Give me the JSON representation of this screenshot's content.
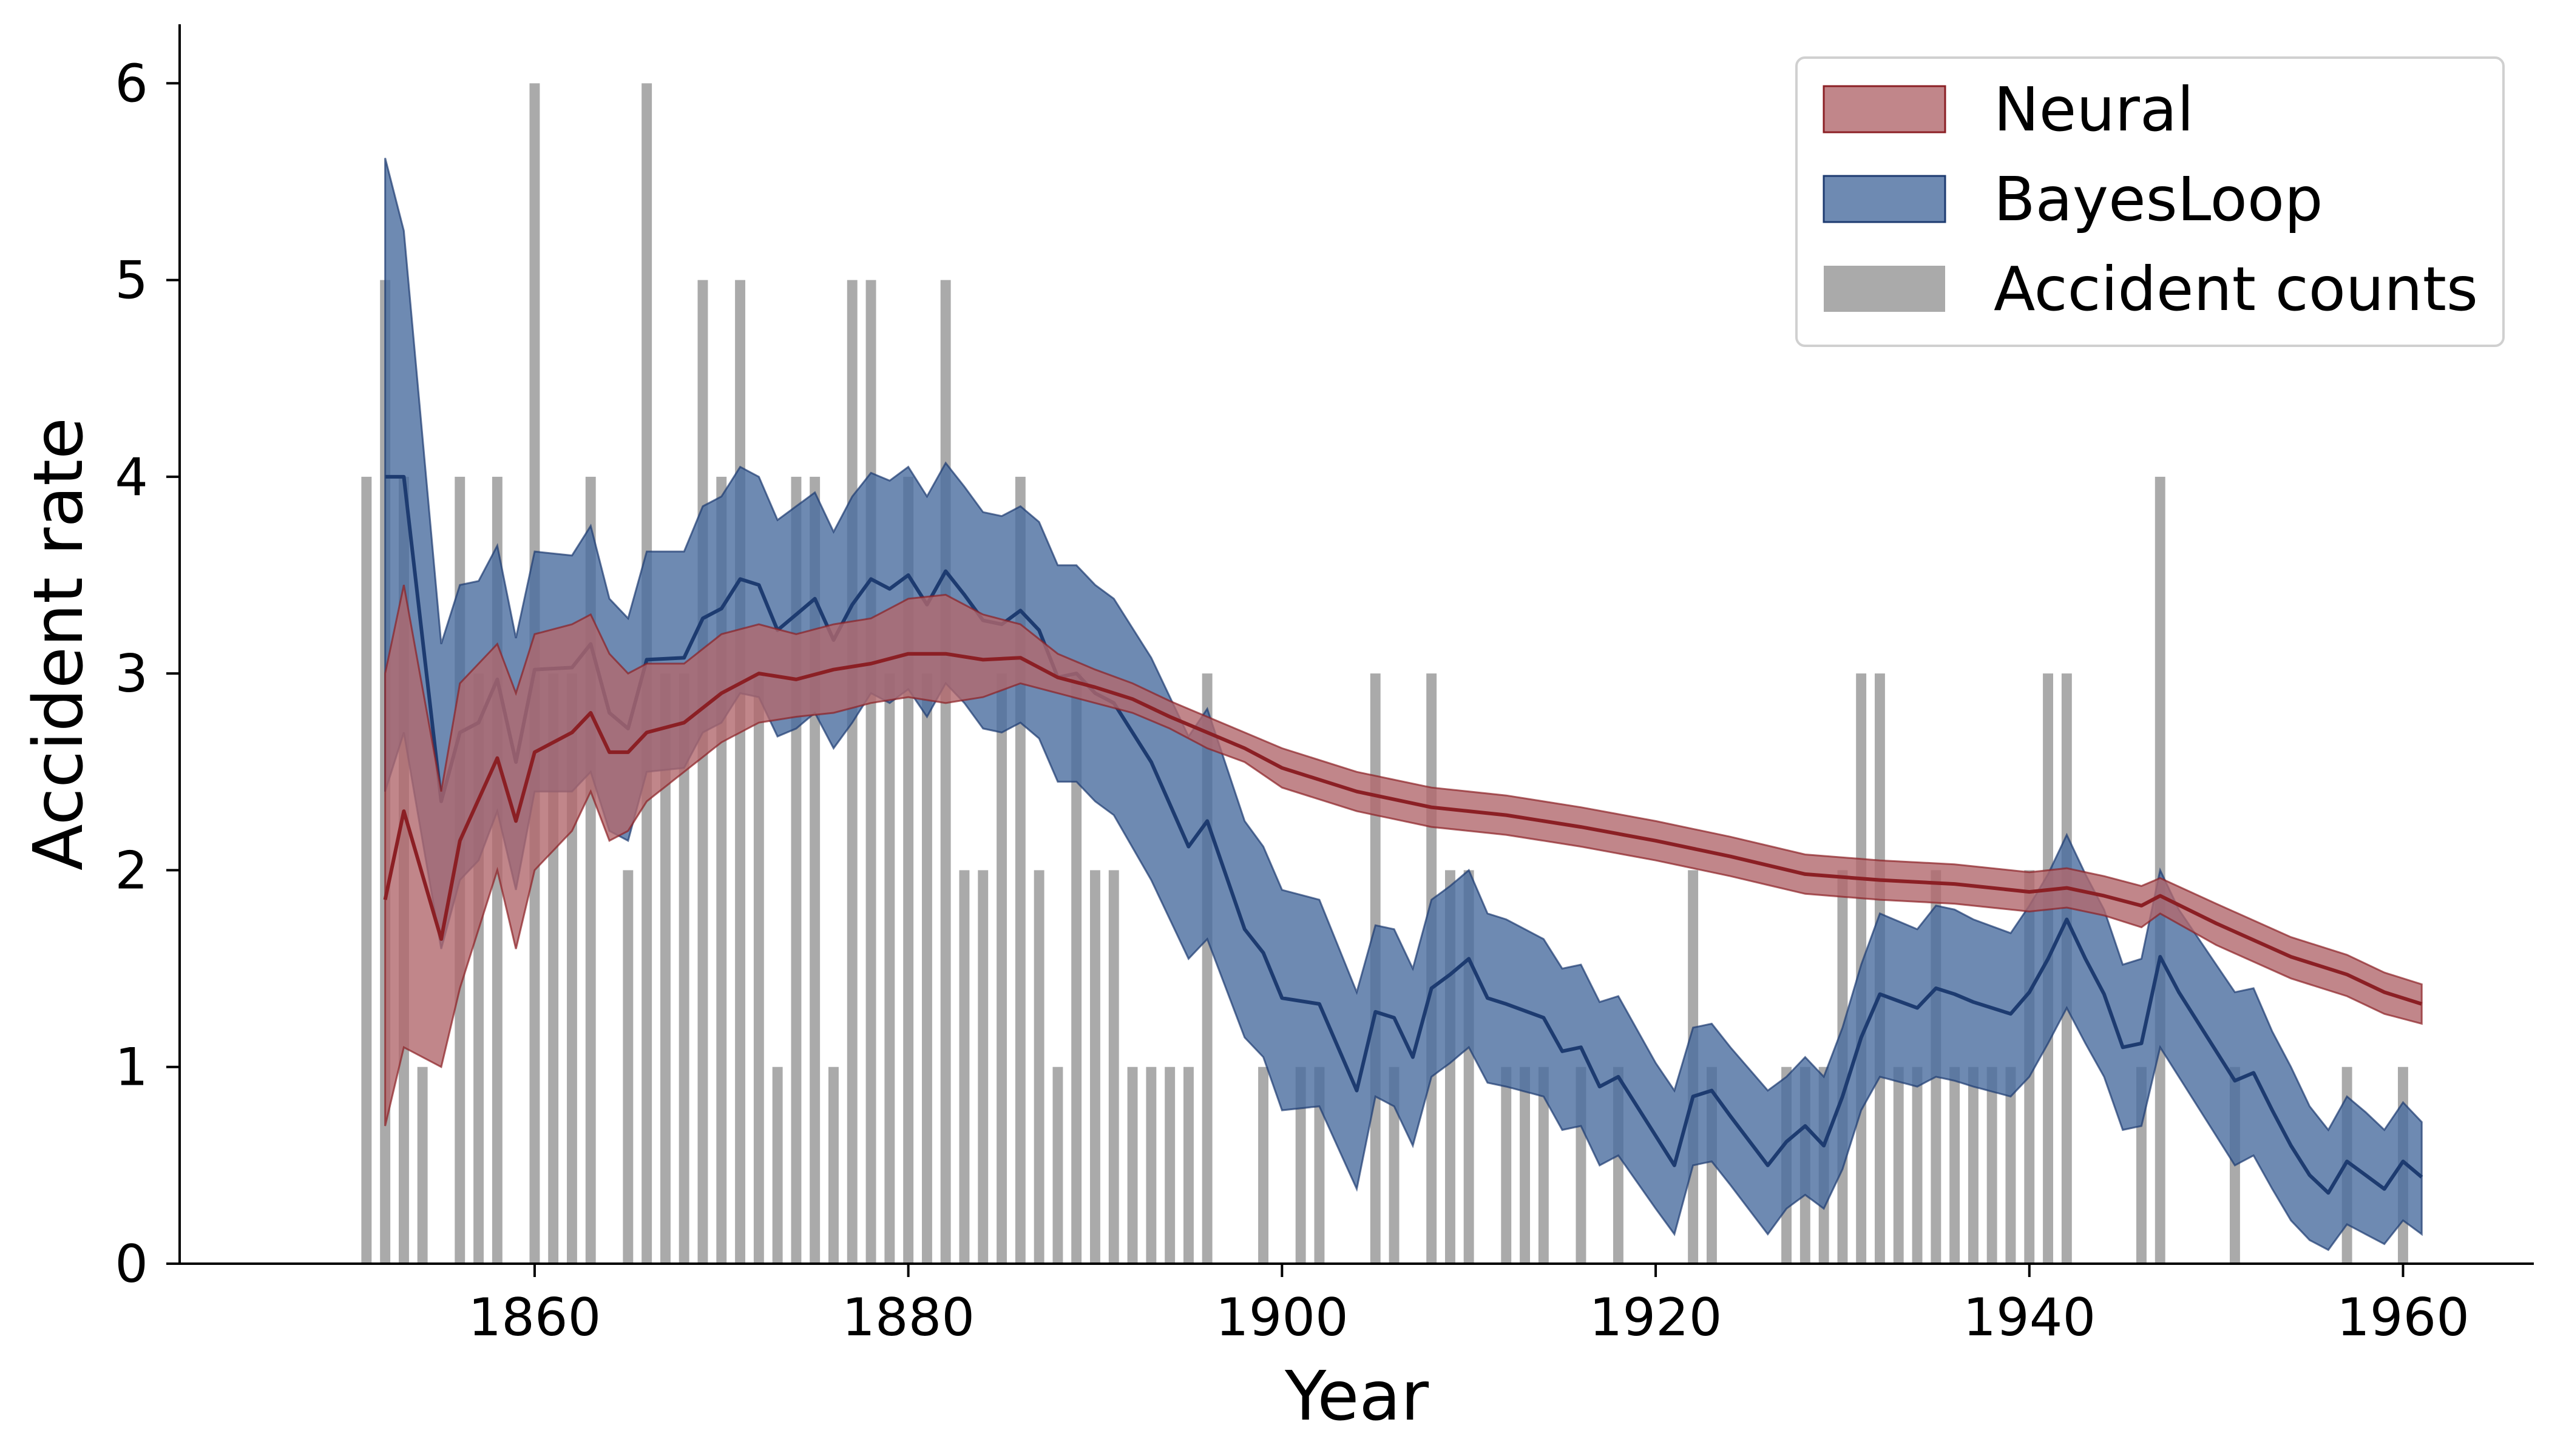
{
  "chart_data": {
    "type": "bar",
    "title": "",
    "xlabel": "Year",
    "ylabel": "Accident rate",
    "xlim": [
      1841,
      1967
    ],
    "ylim": [
      0,
      6.3
    ],
    "xticks": [
      1860,
      1880,
      1900,
      1920,
      1940,
      1960
    ],
    "yticks": [
      0,
      1,
      2,
      3,
      4,
      5,
      6
    ],
    "grid": false,
    "legend_position": "top-right",
    "colors": {
      "neural_fill": "#b2686d",
      "neural_line": "#8b1f24",
      "bayes_fill": "#4a6d9f",
      "bayes_line": "#1d3b70",
      "counts": "#aaaaaa"
    },
    "legend": [
      {
        "key": "neural",
        "label": "Neural"
      },
      {
        "key": "bayes",
        "label": "BayesLoop"
      },
      {
        "key": "counts",
        "label": "Accident counts"
      }
    ],
    "counts": {
      "name": "Accident counts",
      "x": [
        1851,
        1852,
        1853,
        1854,
        1855,
        1856,
        1857,
        1858,
        1859,
        1860,
        1861,
        1862,
        1863,
        1864,
        1865,
        1866,
        1867,
        1868,
        1869,
        1870,
        1871,
        1872,
        1873,
        1874,
        1875,
        1876,
        1877,
        1878,
        1879,
        1880,
        1881,
        1882,
        1883,
        1884,
        1885,
        1886,
        1887,
        1888,
        1889,
        1890,
        1891,
        1892,
        1893,
        1894,
        1895,
        1896,
        1897,
        1898,
        1899,
        1900,
        1901,
        1902,
        1903,
        1904,
        1905,
        1906,
        1907,
        1908,
        1909,
        1910,
        1911,
        1912,
        1913,
        1914,
        1915,
        1916,
        1917,
        1918,
        1919,
        1920,
        1921,
        1922,
        1923,
        1924,
        1925,
        1926,
        1927,
        1928,
        1929,
        1930,
        1931,
        1932,
        1933,
        1934,
        1935,
        1936,
        1937,
        1938,
        1939,
        1940,
        1941,
        1942,
        1943,
        1944,
        1945,
        1946,
        1947,
        1948,
        1949,
        1950,
        1951,
        1952,
        1953,
        1954,
        1955,
        1956,
        1957,
        1958,
        1959,
        1960,
        1961
      ],
      "values": [
        4,
        5,
        4,
        1,
        0,
        4,
        3,
        4,
        0,
        6,
        3,
        3,
        4,
        0,
        2,
        6,
        3,
        3,
        5,
        4,
        5,
        3,
        1,
        4,
        4,
        1,
        5,
        5,
        3,
        4,
        3,
        5,
        2,
        2,
        3,
        4,
        2,
        1,
        3,
        2,
        2,
        1,
        1,
        1,
        1,
        3,
        0,
        0,
        1,
        0,
        1,
        1,
        0,
        0,
        3,
        1,
        0,
        3,
        2,
        2,
        0,
        1,
        1,
        1,
        0,
        1,
        0,
        1,
        0,
        0,
        0,
        2,
        1,
        0,
        0,
        0,
        1,
        1,
        1,
        2,
        3,
        3,
        1,
        1,
        2,
        1,
        1,
        1,
        1,
        2,
        3,
        3,
        0,
        0,
        0,
        1,
        4,
        0,
        0,
        0,
        1,
        0,
        0,
        0,
        0,
        0,
        1,
        0,
        0,
        1,
        0
      ]
    },
    "neural": {
      "name": "Neural",
      "x": [
        1852,
        1853,
        1855,
        1856,
        1858,
        1859,
        1860,
        1862,
        1863,
        1864,
        1865,
        1866,
        1868,
        1870,
        1872,
        1874,
        1876,
        1878,
        1880,
        1882,
        1884,
        1886,
        1888,
        1890,
        1892,
        1894,
        1896,
        1898,
        1900,
        1904,
        1908,
        1912,
        1916,
        1920,
        1924,
        1928,
        1932,
        1936,
        1940,
        1942,
        1944,
        1946,
        1947,
        1950,
        1954,
        1957,
        1959,
        1961
      ],
      "mean": [
        1.85,
        2.3,
        1.65,
        2.15,
        2.57,
        2.25,
        2.6,
        2.7,
        2.8,
        2.6,
        2.6,
        2.7,
        2.75,
        2.9,
        3.0,
        2.97,
        3.02,
        3.05,
        3.1,
        3.1,
        3.07,
        3.08,
        2.98,
        2.93,
        2.87,
        2.78,
        2.7,
        2.62,
        2.52,
        2.4,
        2.32,
        2.28,
        2.22,
        2.15,
        2.07,
        1.98,
        1.95,
        1.93,
        1.89,
        1.91,
        1.87,
        1.82,
        1.87,
        1.73,
        1.56,
        1.47,
        1.38,
        1.32
      ],
      "lower": [
        0.7,
        1.1,
        1.0,
        1.4,
        2.0,
        1.6,
        2.0,
        2.2,
        2.4,
        2.15,
        2.2,
        2.35,
        2.5,
        2.65,
        2.75,
        2.78,
        2.8,
        2.85,
        2.88,
        2.85,
        2.88,
        2.95,
        2.9,
        2.85,
        2.8,
        2.72,
        2.62,
        2.55,
        2.42,
        2.3,
        2.22,
        2.18,
        2.12,
        2.05,
        1.97,
        1.88,
        1.85,
        1.83,
        1.79,
        1.81,
        1.77,
        1.71,
        1.78,
        1.62,
        1.45,
        1.36,
        1.27,
        1.22
      ],
      "upper": [
        3.0,
        3.45,
        2.4,
        2.95,
        3.15,
        2.9,
        3.2,
        3.25,
        3.3,
        3.1,
        3.0,
        3.05,
        3.05,
        3.2,
        3.25,
        3.2,
        3.25,
        3.28,
        3.38,
        3.4,
        3.3,
        3.25,
        3.1,
        3.02,
        2.95,
        2.86,
        2.78,
        2.7,
        2.62,
        2.5,
        2.42,
        2.38,
        2.32,
        2.25,
        2.17,
        2.08,
        2.05,
        2.03,
        1.99,
        2.01,
        1.97,
        1.92,
        1.96,
        1.83,
        1.66,
        1.57,
        1.48,
        1.42
      ]
    },
    "bayes": {
      "name": "BayesLoop",
      "x": [
        1852,
        1853,
        1855,
        1856,
        1857,
        1858,
        1859,
        1860,
        1862,
        1863,
        1864,
        1865,
        1866,
        1868,
        1869,
        1870,
        1871,
        1872,
        1873,
        1874,
        1875,
        1876,
        1877,
        1878,
        1879,
        1880,
        1881,
        1882,
        1883,
        1884,
        1885,
        1886,
        1887,
        1888,
        1889,
        1890,
        1891,
        1893,
        1895,
        1896,
        1898,
        1899,
        1900,
        1902,
        1904,
        1905,
        1906,
        1907,
        1908,
        1909,
        1910,
        1911,
        1912,
        1914,
        1915,
        1916,
        1917,
        1918,
        1920,
        1921,
        1922,
        1923,
        1924,
        1926,
        1927,
        1928,
        1929,
        1930,
        1931,
        1932,
        1934,
        1935,
        1936,
        1937,
        1939,
        1940,
        1941,
        1942,
        1943,
        1944,
        1945,
        1946,
        1947,
        1948,
        1951,
        1952,
        1953,
        1954,
        1955,
        1956,
        1957,
        1958,
        1959,
        1960,
        1961
      ],
      "mean": [
        4.0,
        4.0,
        2.35,
        2.7,
        2.75,
        2.97,
        2.55,
        3.02,
        3.03,
        3.15,
        2.8,
        2.72,
        3.07,
        3.08,
        3.28,
        3.33,
        3.48,
        3.45,
        3.22,
        3.3,
        3.38,
        3.17,
        3.35,
        3.48,
        3.43,
        3.5,
        3.35,
        3.52,
        3.4,
        3.27,
        3.25,
        3.32,
        3.22,
        2.98,
        3.0,
        2.9,
        2.85,
        2.55,
        2.12,
        2.25,
        1.7,
        1.58,
        1.35,
        1.32,
        0.88,
        1.28,
        1.25,
        1.05,
        1.4,
        1.47,
        1.55,
        1.35,
        1.32,
        1.25,
        1.08,
        1.1,
        0.9,
        0.95,
        0.65,
        0.5,
        0.85,
        0.88,
        0.75,
        0.5,
        0.62,
        0.7,
        0.6,
        0.85,
        1.15,
        1.37,
        1.3,
        1.4,
        1.37,
        1.33,
        1.27,
        1.38,
        1.55,
        1.75,
        1.55,
        1.37,
        1.1,
        1.12,
        1.56,
        1.38,
        0.93,
        0.97,
        0.78,
        0.6,
        0.45,
        0.36,
        0.52,
        0.45,
        0.38,
        0.52,
        0.44
      ],
      "lower": [
        2.4,
        2.7,
        1.6,
        1.95,
        2.05,
        2.3,
        1.9,
        2.4,
        2.4,
        2.5,
        2.2,
        2.15,
        2.5,
        2.52,
        2.7,
        2.75,
        2.9,
        2.88,
        2.68,
        2.72,
        2.8,
        2.62,
        2.75,
        2.9,
        2.85,
        2.92,
        2.78,
        2.95,
        2.85,
        2.72,
        2.7,
        2.75,
        2.67,
        2.45,
        2.45,
        2.35,
        2.28,
        1.95,
        1.55,
        1.65,
        1.15,
        1.05,
        0.78,
        0.8,
        0.38,
        0.85,
        0.8,
        0.6,
        0.95,
        1.02,
        1.1,
        0.92,
        0.9,
        0.85,
        0.68,
        0.7,
        0.5,
        0.55,
        0.28,
        0.15,
        0.5,
        0.52,
        0.4,
        0.15,
        0.28,
        0.35,
        0.28,
        0.48,
        0.78,
        0.95,
        0.9,
        0.95,
        0.93,
        0.9,
        0.85,
        0.95,
        1.12,
        1.3,
        1.12,
        0.95,
        0.68,
        0.7,
        1.1,
        0.95,
        0.5,
        0.55,
        0.38,
        0.22,
        0.12,
        0.07,
        0.2,
        0.15,
        0.1,
        0.22,
        0.15
      ],
      "upper": [
        5.62,
        5.25,
        3.15,
        3.45,
        3.47,
        3.65,
        3.18,
        3.62,
        3.6,
        3.75,
        3.38,
        3.28,
        3.62,
        3.62,
        3.85,
        3.9,
        4.05,
        4.0,
        3.78,
        3.85,
        3.92,
        3.72,
        3.9,
        4.02,
        3.98,
        4.05,
        3.9,
        4.07,
        3.95,
        3.82,
        3.8,
        3.85,
        3.77,
        3.55,
        3.55,
        3.45,
        3.38,
        3.08,
        2.68,
        2.82,
        2.25,
        2.12,
        1.9,
        1.85,
        1.38,
        1.72,
        1.7,
        1.5,
        1.85,
        1.92,
        2.0,
        1.78,
        1.75,
        1.65,
        1.5,
        1.52,
        1.33,
        1.36,
        1.02,
        0.88,
        1.2,
        1.22,
        1.1,
        0.88,
        0.95,
        1.05,
        0.95,
        1.2,
        1.52,
        1.78,
        1.7,
        1.82,
        1.8,
        1.75,
        1.68,
        1.82,
        1.98,
        2.18,
        1.98,
        1.8,
        1.52,
        1.55,
        2.0,
        1.8,
        1.38,
        1.4,
        1.18,
        1.0,
        0.8,
        0.68,
        0.85,
        0.77,
        0.68,
        0.82,
        0.72
      ]
    }
  }
}
